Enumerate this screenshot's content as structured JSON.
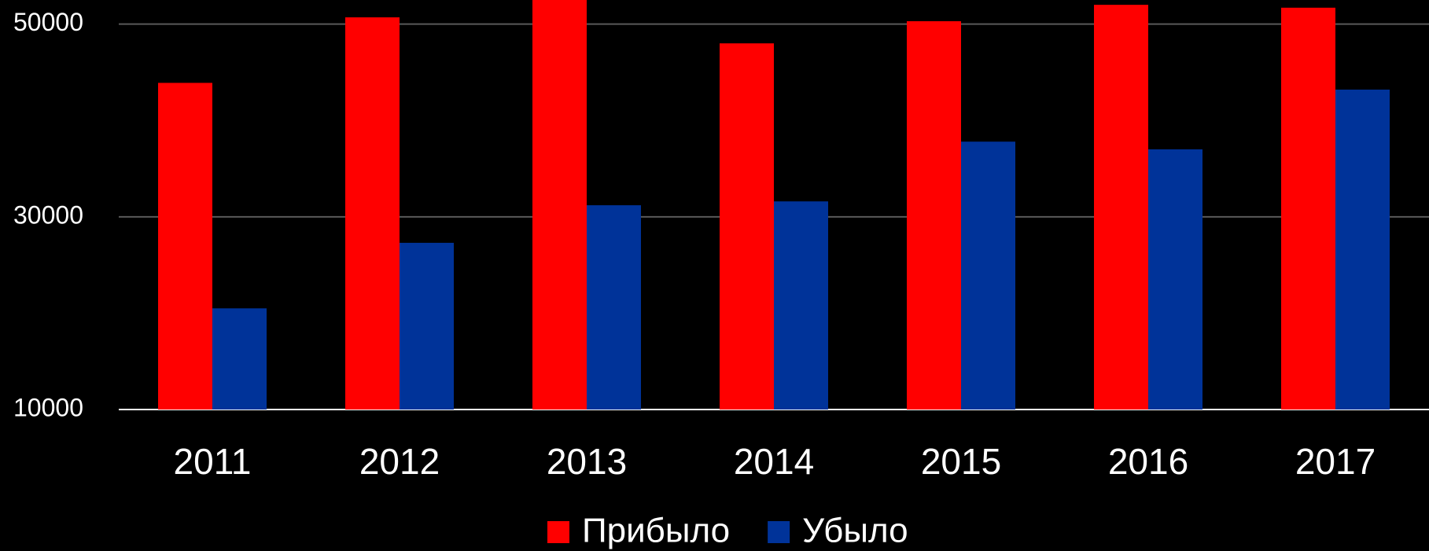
{
  "chart_data": {
    "type": "bar",
    "categories": [
      "2011",
      "2012",
      "2013",
      "2014",
      "2015",
      "2016",
      "2017"
    ],
    "series": [
      {
        "name": "Прибыло",
        "color": "#ff0000",
        "values": [
          43900,
          50700,
          54000,
          48000,
          50300,
          52000,
          51700
        ]
      },
      {
        "name": "Убыло",
        "color": "#003399",
        "values": [
          20500,
          27300,
          31200,
          31600,
          37800,
          37000,
          43200
        ]
      }
    ],
    "ylim": [
      10000,
      52500
    ],
    "yticks": [
      10000,
      30000,
      50000
    ],
    "grid": true,
    "legend": "bottom"
  }
}
